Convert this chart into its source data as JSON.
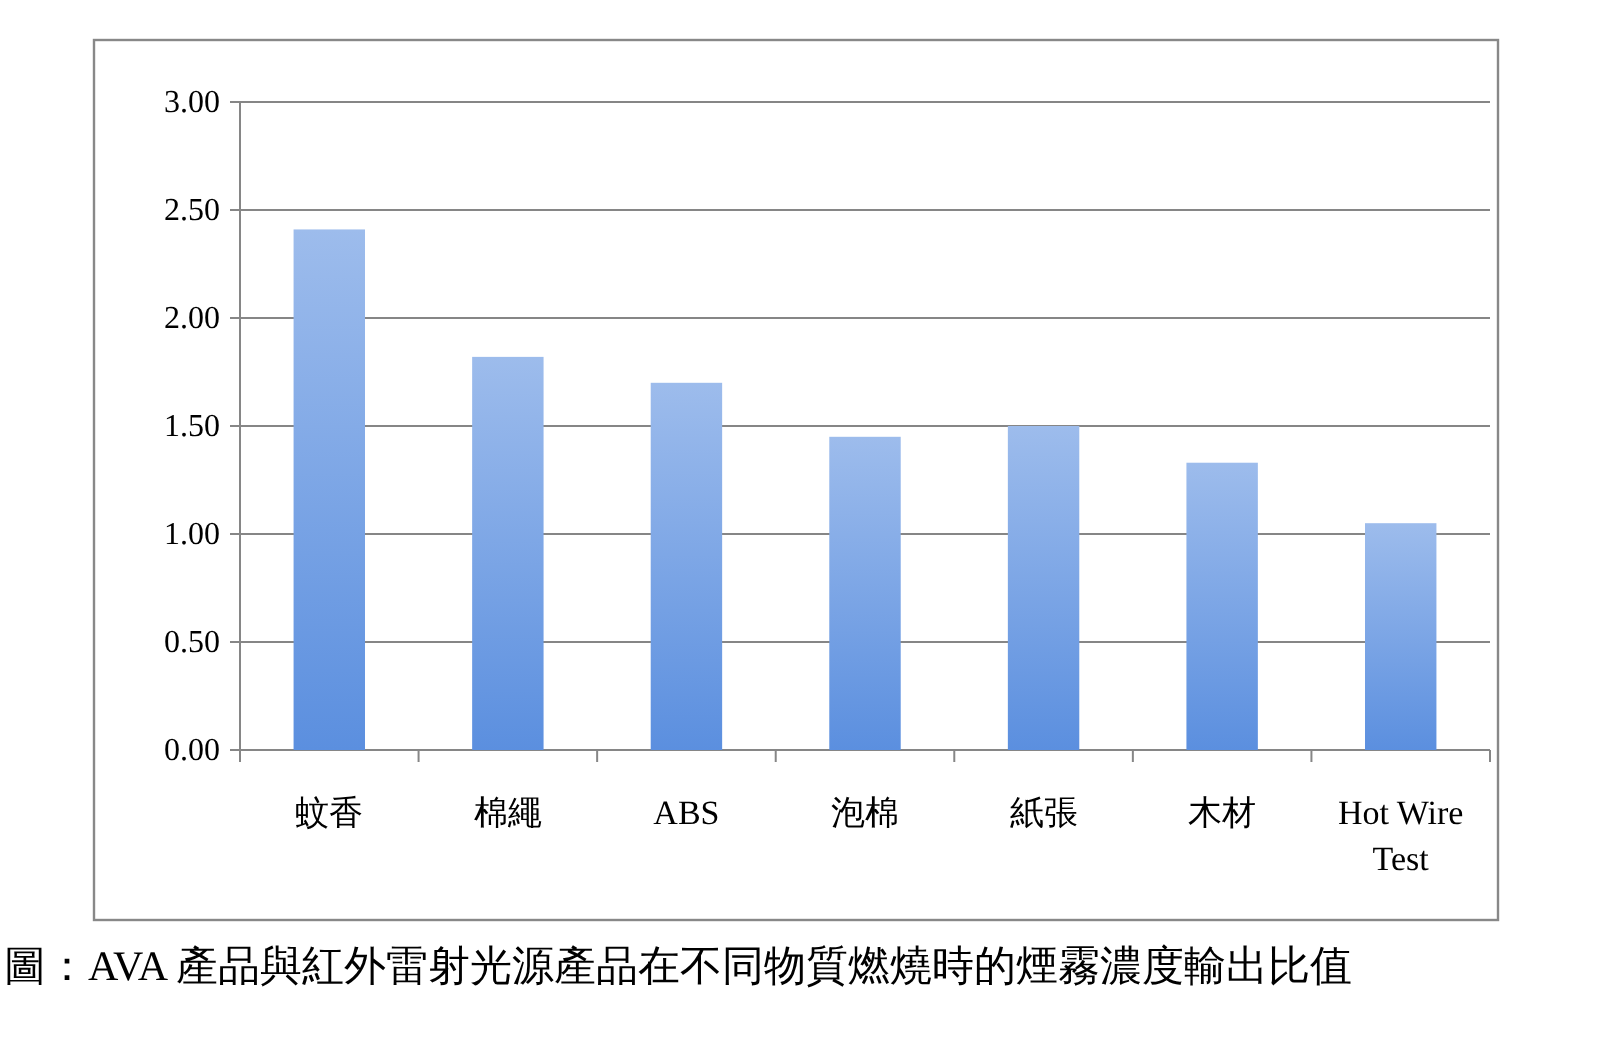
{
  "chart_data": {
    "type": "bar",
    "categories": [
      "蚊香",
      "棉繩",
      "ABS",
      "泡棉",
      "紙張",
      "木材",
      "Hot Wire Test"
    ],
    "values": [
      2.41,
      1.82,
      1.7,
      1.45,
      1.5,
      1.33,
      1.05
    ],
    "color": "#5b8fdf",
    "ylim": [
      0,
      3
    ],
    "yticks": [
      {
        "value": 0,
        "label": "0.00"
      },
      {
        "value": 0.5,
        "label": "0.50"
      },
      {
        "value": 1,
        "label": "1.00"
      },
      {
        "value": 1.5,
        "label": "1.50"
      },
      {
        "value": 2,
        "label": "2.00"
      },
      {
        "value": 2.5,
        "label": "2.50"
      },
      {
        "value": 3,
        "label": "3.00"
      }
    ],
    "grid": "y",
    "annotations": [
      "圖：AVA 產品與紅外雷射光源產品在不同物質燃燒時的煙霧濃度輸出比值"
    ]
  }
}
